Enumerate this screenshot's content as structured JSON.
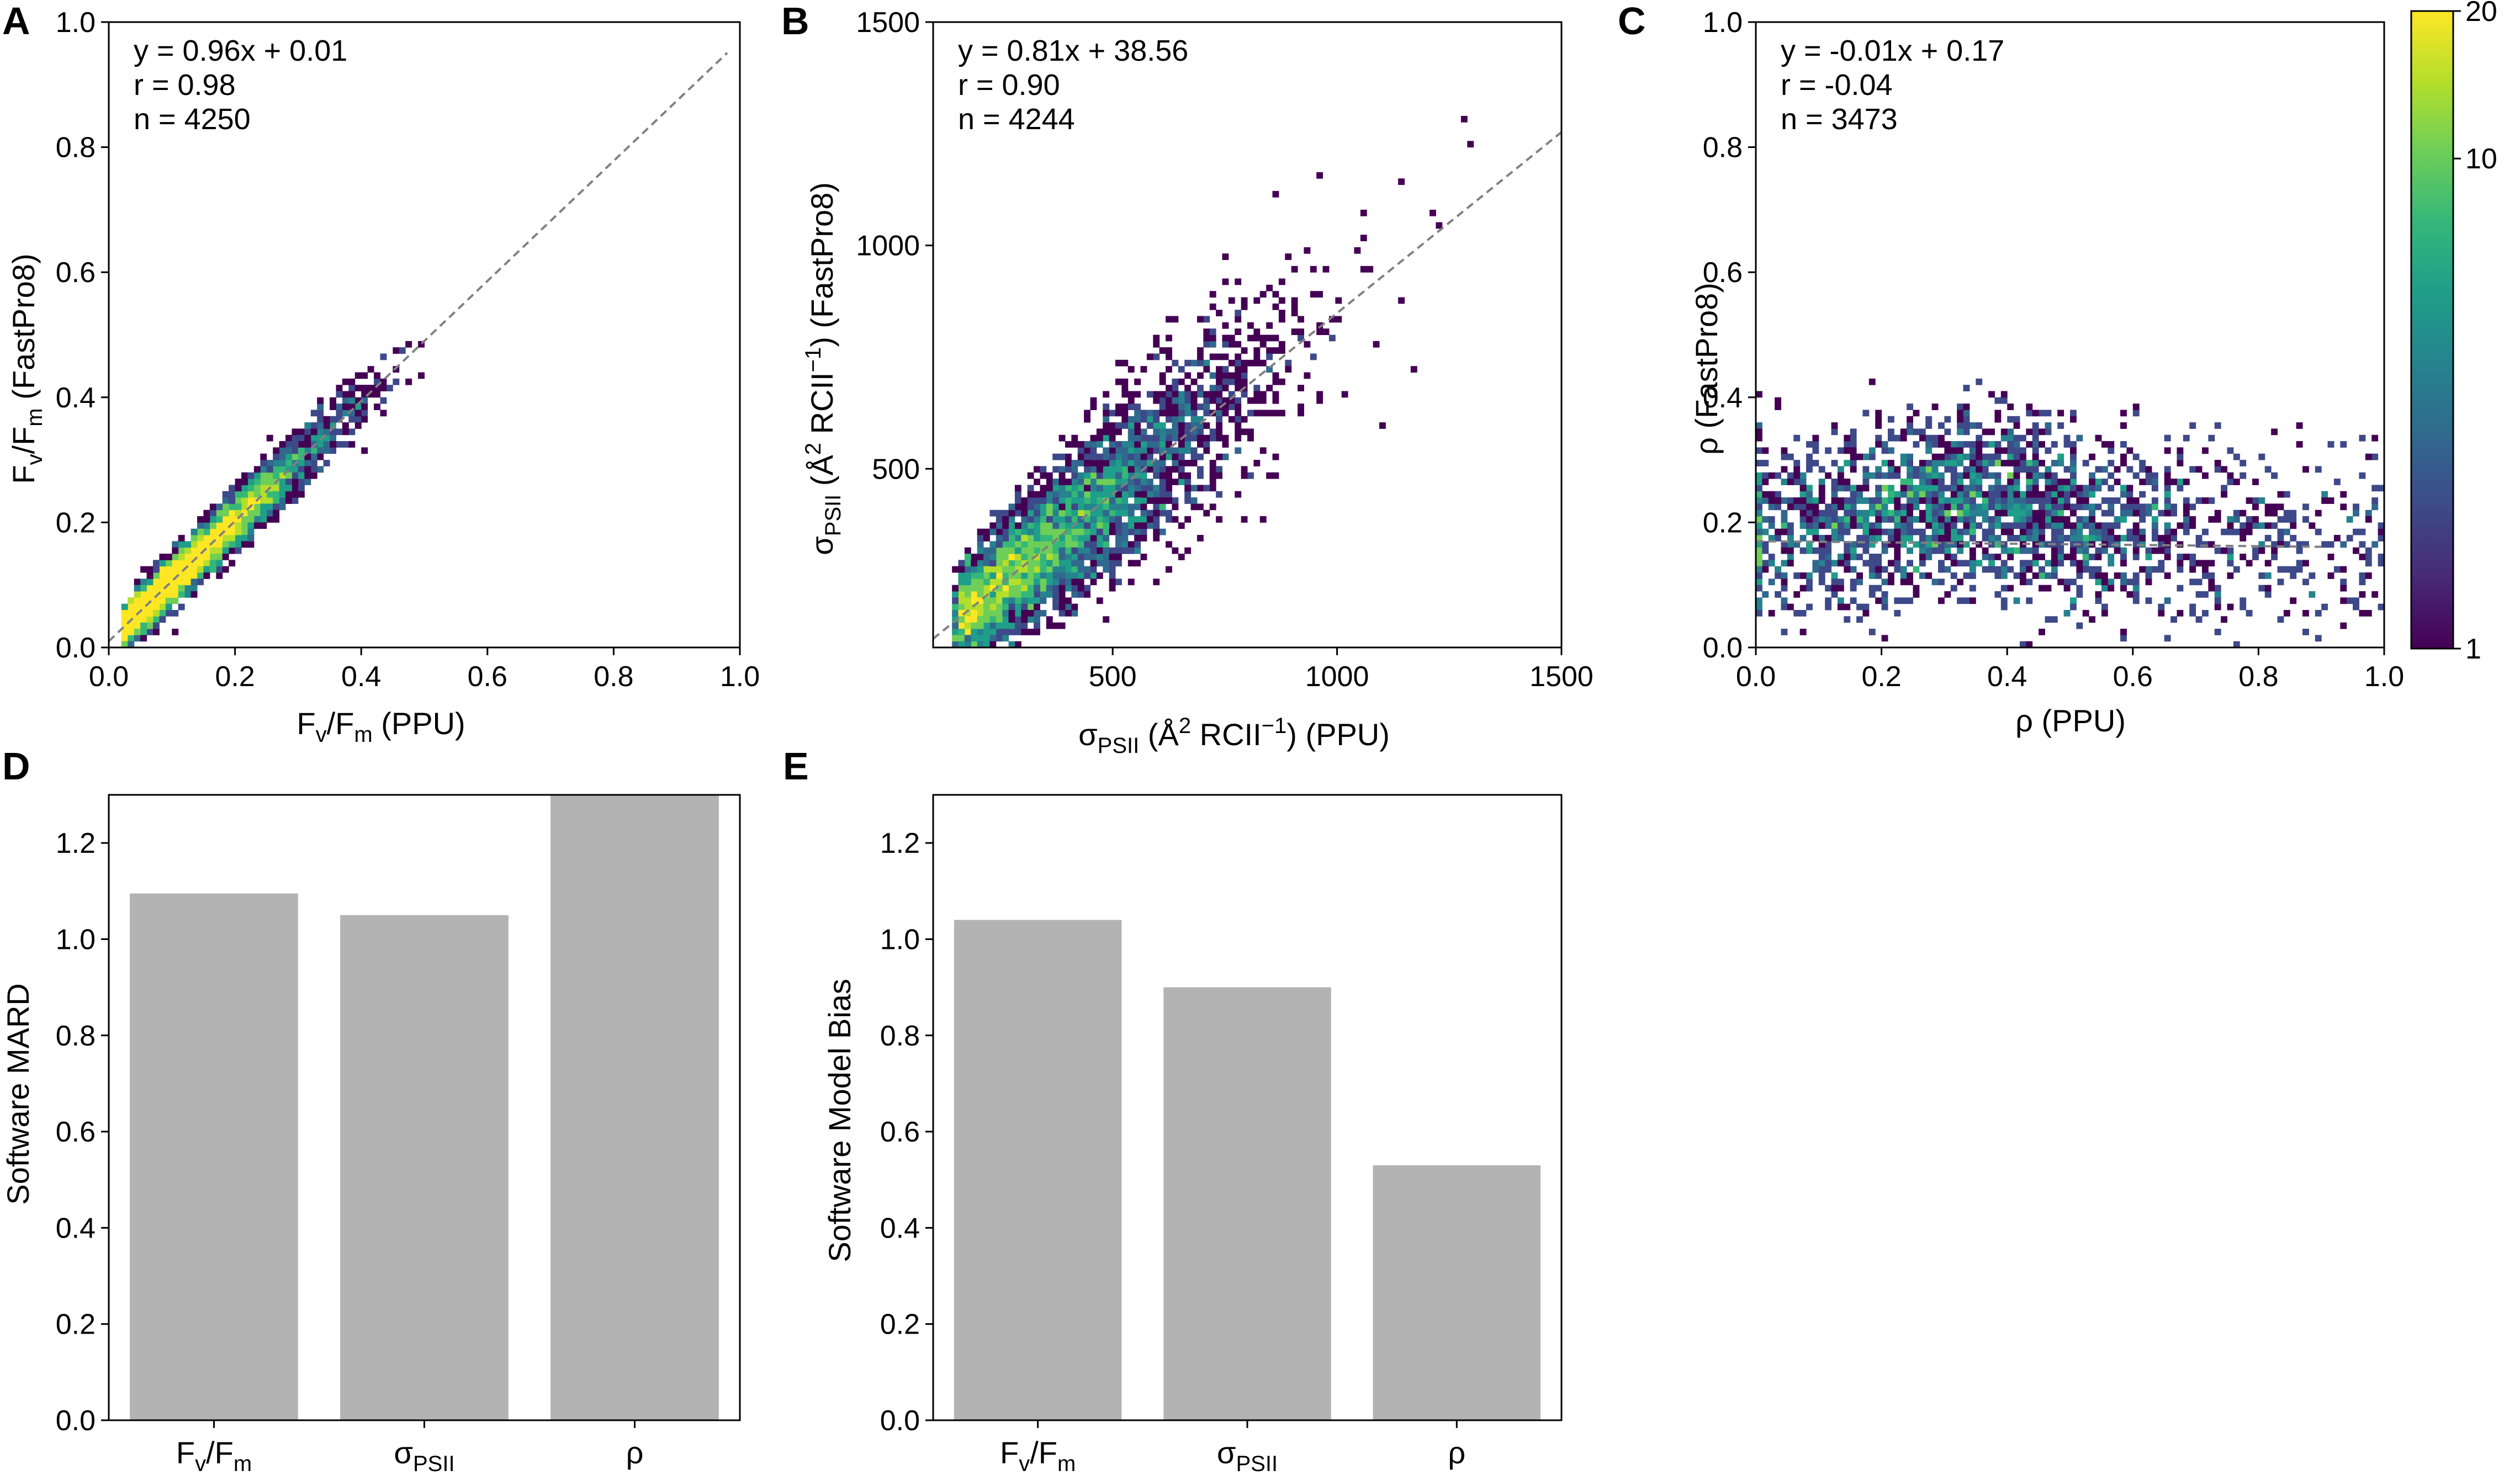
{
  "colors": {
    "viridis": [
      "#440154",
      "#482878",
      "#3e4989",
      "#31688e",
      "#26828e",
      "#1f9e89",
      "#35b779",
      "#6ece58",
      "#b5de2b",
      "#fde725"
    ],
    "bar": "#b3b3b3",
    "fit_line": "#808080"
  },
  "chart_data": [
    {
      "panel": "A",
      "type": "heatmap",
      "title": "",
      "xlabel": "F_v/F_m (PPU)",
      "ylabel": "F_v/F_m (FastPro8)",
      "xlim": [
        0,
        1.0
      ],
      "ylim": [
        0,
        1.0
      ],
      "xticks": [
        "0.0",
        "0.2",
        "0.4",
        "0.6",
        "0.8",
        "1.0"
      ],
      "yticks": [
        "0.0",
        "0.2",
        "0.4",
        "0.6",
        "0.8",
        "1.0"
      ],
      "xtick_values": [
        0,
        0.2,
        0.4,
        0.6,
        0.8,
        1.0
      ],
      "ytick_values": [
        0,
        0.2,
        0.4,
        0.6,
        0.8,
        1.0
      ],
      "annotation": [
        "y = 0.96x + 0.01",
        "r = 0.98",
        "n = 4250"
      ],
      "fit": {
        "slope": 0.96,
        "intercept": 0.01,
        "x_range": [
          0.0,
          0.98
        ]
      },
      "density": {
        "centers": [
          0.02,
          0.5
        ],
        "noise": 0.03,
        "peak": 0.15
      }
    },
    {
      "panel": "B",
      "type": "heatmap",
      "title": "",
      "xlabel": "σ_PSII (Å^2 RCII^-1) (PPU)",
      "ylabel": "σ_PSII (Å^2 RCII^-1) (FastPro8)",
      "xlim": [
        100,
        1500
      ],
      "ylim": [
        100,
        1500
      ],
      "xticks": [
        "500",
        "1000",
        "1500"
      ],
      "yticks": [
        "500",
        "1000",
        "1500"
      ],
      "xtick_values": [
        500,
        1000,
        1500
      ],
      "ytick_values": [
        500,
        1000,
        1500
      ],
      "annotation": [
        "y = 0.81x + 38.56",
        "r = 0.90",
        "n = 4244"
      ],
      "fit": {
        "slope": 0.81,
        "intercept": 38.56,
        "x_range": [
          100,
          1500
        ]
      },
      "density": {
        "centers": [
          150,
          1300
        ],
        "noise": 60,
        "peak": 300
      }
    },
    {
      "panel": "C",
      "type": "heatmap",
      "title": "",
      "xlabel": "ρ (PPU)",
      "ylabel": "ρ (FastPro8)",
      "xlim": [
        0,
        1.0
      ],
      "ylim": [
        0,
        1.0
      ],
      "xticks": [
        "0.0",
        "0.2",
        "0.4",
        "0.6",
        "0.8",
        "1.0"
      ],
      "yticks": [
        "0.0",
        "0.2",
        "0.4",
        "0.6",
        "0.8",
        "1.0"
      ],
      "xtick_values": [
        0,
        0.2,
        0.4,
        0.6,
        0.8,
        1.0
      ],
      "ytick_values": [
        0,
        0.2,
        0.4,
        0.6,
        0.8,
        1.0
      ],
      "annotation": [
        "y = -0.01x + 0.17",
        "r = -0.04",
        "n = 3473"
      ],
      "fit": {
        "slope": -0.01,
        "intercept": 0.17,
        "x_range": [
          0.0,
          0.9
        ]
      },
      "density": {
        "center_y": 0.18,
        "spread_y": 0.07,
        "peak_x": 0.32
      },
      "colorbar": {
        "scale": "log",
        "range": [
          1,
          20
        ],
        "ticks": [
          "1",
          "10",
          "20"
        ],
        "tick_values": [
          1,
          10,
          20
        ]
      }
    },
    {
      "panel": "D",
      "type": "bar",
      "title": "",
      "categories": [
        "F_v/F_m",
        "σ_PSII",
        "ρ"
      ],
      "values": [
        1.095,
        1.05,
        1.3
      ],
      "xlabel": "",
      "ylabel": "Software MARD",
      "ylim": [
        0,
        1.3
      ],
      "yticks": [
        "0.0",
        "0.2",
        "0.4",
        "0.6",
        "0.8",
        "1.0",
        "1.2"
      ],
      "ytick_values": [
        0,
        0.2,
        0.4,
        0.6,
        0.8,
        1.0,
        1.2
      ]
    },
    {
      "panel": "E",
      "type": "bar",
      "title": "",
      "categories": [
        "F_v/F_m",
        "σ_PSII",
        "ρ"
      ],
      "values": [
        1.04,
        0.9,
        0.53
      ],
      "xlabel": "",
      "ylabel": "Software Model Bias",
      "ylim": [
        0,
        1.3
      ],
      "yticks": [
        "0.0",
        "0.2",
        "0.4",
        "0.6",
        "0.8",
        "1.0",
        "1.2"
      ],
      "ytick_values": [
        0,
        0.2,
        0.4,
        0.6,
        0.8,
        1.0,
        1.2
      ]
    }
  ]
}
